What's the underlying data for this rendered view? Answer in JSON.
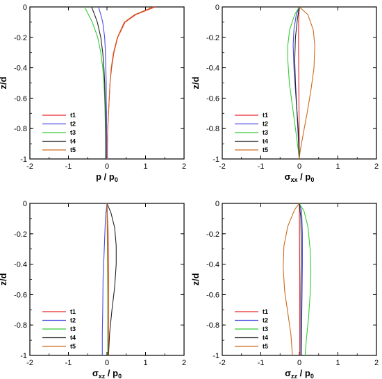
{
  "legend_labels": [
    "t1",
    "t2",
    "t3",
    "t4",
    "t5"
  ],
  "series_colors": [
    "#e8262b",
    "#4a4ae0",
    "#33cc33",
    "#222222",
    "#cc6a1c"
  ],
  "chart_data": [
    {
      "type": "line",
      "xlabel_main": "p / p",
      "xlabel_sub": "0",
      "ylabel": "z/d",
      "xlim": [
        -2,
        2
      ],
      "ylim": [
        -1,
        0
      ],
      "xticks": [
        "-2",
        "-1",
        "0",
        "1",
        "2"
      ],
      "yticks": [
        "0",
        "-0.2",
        "-0.4",
        "-0.6",
        "-0.8",
        "-1"
      ],
      "legend_position": "bottom-left",
      "series": [
        {
          "name": "t1",
          "points": [
            [
              1.25,
              0
            ],
            [
              0.75,
              -0.05
            ],
            [
              0.47,
              -0.1
            ],
            [
              0.28,
              -0.2
            ],
            [
              0.18,
              -0.3
            ],
            [
              0.12,
              -0.4
            ],
            [
              0.08,
              -0.5
            ],
            [
              0.06,
              -0.6
            ],
            [
              0.04,
              -0.7
            ],
            [
              0.02,
              -0.8
            ],
            [
              0.01,
              -0.9
            ],
            [
              0.01,
              -1
            ]
          ]
        },
        {
          "name": "t2",
          "points": [
            [
              -0.22,
              0
            ],
            [
              -0.16,
              -0.05
            ],
            [
              -0.11,
              -0.1
            ],
            [
              -0.06,
              -0.2
            ],
            [
              -0.04,
              -0.3
            ],
            [
              -0.03,
              -0.4
            ],
            [
              -0.02,
              -0.5
            ],
            [
              -0.02,
              -0.6
            ],
            [
              -0.01,
              -0.7
            ],
            [
              -0.01,
              -0.8
            ],
            [
              -0.01,
              -0.9
            ],
            [
              -0.01,
              -1
            ]
          ]
        },
        {
          "name": "t3",
          "points": [
            [
              -0.58,
              0
            ],
            [
              -0.48,
              -0.05
            ],
            [
              -0.38,
              -0.1
            ],
            [
              -0.24,
              -0.2
            ],
            [
              -0.16,
              -0.3
            ],
            [
              -0.11,
              -0.4
            ],
            [
              -0.08,
              -0.5
            ],
            [
              -0.06,
              -0.6
            ],
            [
              -0.05,
              -0.7
            ],
            [
              -0.04,
              -0.8
            ],
            [
              -0.03,
              -0.9
            ],
            [
              -0.03,
              -1
            ]
          ]
        },
        {
          "name": "t4",
          "points": [
            [
              -0.4,
              0
            ],
            [
              -0.32,
              -0.05
            ],
            [
              -0.25,
              -0.1
            ],
            [
              -0.16,
              -0.2
            ],
            [
              -0.11,
              -0.3
            ],
            [
              -0.08,
              -0.4
            ],
            [
              -0.06,
              -0.5
            ],
            [
              -0.05,
              -0.6
            ],
            [
              -0.04,
              -0.7
            ],
            [
              -0.03,
              -0.8
            ],
            [
              -0.03,
              -0.9
            ],
            [
              -0.03,
              -1
            ]
          ]
        },
        {
          "name": "t5",
          "points": [
            [
              1.2,
              0
            ],
            [
              0.72,
              -0.05
            ],
            [
              0.45,
              -0.1
            ],
            [
              0.27,
              -0.2
            ],
            [
              0.17,
              -0.3
            ],
            [
              0.11,
              -0.4
            ],
            [
              0.08,
              -0.5
            ],
            [
              0.06,
              -0.6
            ],
            [
              0.04,
              -0.7
            ],
            [
              0.02,
              -0.8
            ],
            [
              0.01,
              -0.9
            ],
            [
              0.01,
              -1
            ]
          ]
        }
      ]
    },
    {
      "type": "line",
      "xlabel_main": "σ",
      "xlabel_sub": "xx",
      "xlabel_main2": " / p",
      "xlabel_sub2": "0",
      "ylabel": "z/d",
      "xlim": [
        -2,
        2
      ],
      "ylim": [
        -1,
        0
      ],
      "xticks": [
        "-2",
        "-1",
        "0",
        "1",
        "2"
      ],
      "yticks": [
        "0",
        "-0.2",
        "-0.4",
        "-0.6",
        "-0.8",
        "-1"
      ],
      "legend_position": "bottom-left",
      "series": [
        {
          "name": "t1",
          "points": [
            [
              0,
              0
            ],
            [
              -0.02,
              -0.1
            ],
            [
              -0.02,
              -0.3
            ],
            [
              -0.01,
              -0.6
            ],
            [
              0,
              -1
            ]
          ]
        },
        {
          "name": "t2",
          "points": [
            [
              0,
              0
            ],
            [
              -0.08,
              -0.05
            ],
            [
              -0.14,
              -0.15
            ],
            [
              -0.16,
              -0.25
            ],
            [
              -0.14,
              -0.4
            ],
            [
              -0.1,
              -0.55
            ],
            [
              -0.06,
              -0.7
            ],
            [
              -0.03,
              -0.85
            ],
            [
              0,
              -1
            ]
          ]
        },
        {
          "name": "t3",
          "points": [
            [
              0,
              0
            ],
            [
              -0.12,
              -0.05
            ],
            [
              -0.25,
              -0.15
            ],
            [
              -0.3,
              -0.25
            ],
            [
              -0.3,
              -0.35
            ],
            [
              -0.26,
              -0.5
            ],
            [
              -0.18,
              -0.65
            ],
            [
              -0.1,
              -0.8
            ],
            [
              -0.04,
              -0.92
            ],
            [
              0,
              -1
            ]
          ]
        },
        {
          "name": "t4",
          "points": [
            [
              0,
              0
            ],
            [
              -0.05,
              -0.08
            ],
            [
              -0.1,
              -0.2
            ],
            [
              -0.12,
              -0.35
            ],
            [
              -0.1,
              -0.5
            ],
            [
              -0.07,
              -0.65
            ],
            [
              -0.03,
              -0.8
            ],
            [
              0,
              -1
            ]
          ]
        },
        {
          "name": "t5",
          "points": [
            [
              0,
              0
            ],
            [
              0.22,
              -0.05
            ],
            [
              0.36,
              -0.15
            ],
            [
              0.4,
              -0.25
            ],
            [
              0.38,
              -0.4
            ],
            [
              0.3,
              -0.55
            ],
            [
              0.2,
              -0.7
            ],
            [
              0.09,
              -0.85
            ],
            [
              0.02,
              -0.95
            ],
            [
              0,
              -1
            ]
          ]
        }
      ]
    },
    {
      "type": "line",
      "xlabel_main": "σ",
      "xlabel_sub": "xz",
      "xlabel_main2": " / p",
      "xlabel_sub2": "0",
      "ylabel": "z/d",
      "xlim": [
        -2,
        2
      ],
      "ylim": [
        -1,
        0
      ],
      "xticks": [
        "-2",
        "-1",
        "0",
        "1",
        "2"
      ],
      "yticks": [
        "0",
        "-0.2",
        "-0.4",
        "-0.6",
        "-0.8",
        "-1"
      ],
      "legend_position": "bottom-left",
      "series": [
        {
          "name": "t1",
          "points": [
            [
              0,
              0
            ],
            [
              0.03,
              -0.2
            ],
            [
              0.04,
              -0.5
            ],
            [
              0.04,
              -0.8
            ],
            [
              0.04,
              -1
            ]
          ]
        },
        {
          "name": "t2",
          "points": [
            [
              0,
              0
            ],
            [
              -0.04,
              -0.1
            ],
            [
              -0.07,
              -0.3
            ],
            [
              -0.1,
              -0.5
            ],
            [
              -0.11,
              -0.7
            ],
            [
              -0.12,
              -0.85
            ],
            [
              -0.12,
              -1
            ]
          ]
        },
        {
          "name": "t3",
          "points": [
            [
              0,
              0
            ],
            [
              0.01,
              -0.3
            ],
            [
              0.02,
              -0.6
            ],
            [
              0.02,
              -1
            ]
          ]
        },
        {
          "name": "t4",
          "points": [
            [
              0,
              0
            ],
            [
              0.1,
              -0.06
            ],
            [
              0.2,
              -0.16
            ],
            [
              0.24,
              -0.28
            ],
            [
              0.24,
              -0.4
            ],
            [
              0.2,
              -0.55
            ],
            [
              0.13,
              -0.7
            ],
            [
              0.07,
              -0.85
            ],
            [
              0.04,
              -1
            ]
          ]
        },
        {
          "name": "t5",
          "points": [
            [
              0,
              0
            ],
            [
              0.02,
              -0.3
            ],
            [
              0.03,
              -0.6
            ],
            [
              0.03,
              -1
            ]
          ]
        }
      ]
    },
    {
      "type": "line",
      "xlabel_main": "σ",
      "xlabel_sub": "zz",
      "xlabel_main2": " / p",
      "xlabel_sub2": "0",
      "ylabel": "z/d",
      "xlim": [
        -2,
        2
      ],
      "ylim": [
        -1,
        0
      ],
      "xticks": [
        "-2",
        "-1",
        "0",
        "1",
        "2"
      ],
      "yticks": [
        "0",
        "-0.2",
        "-0.4",
        "-0.6",
        "-0.8",
        "-1"
      ],
      "legend_position": "bottom-left",
      "series": [
        {
          "name": "t1",
          "points": [
            [
              0,
              0
            ],
            [
              0.01,
              -0.5
            ],
            [
              0.01,
              -1
            ]
          ]
        },
        {
          "name": "t2",
          "points": [
            [
              0,
              0
            ],
            [
              0.06,
              -0.05
            ],
            [
              0.08,
              -0.2
            ],
            [
              0.08,
              -0.4
            ],
            [
              0.07,
              -0.6
            ],
            [
              0.06,
              -0.8
            ],
            [
              0.05,
              -1
            ]
          ]
        },
        {
          "name": "t3",
          "points": [
            [
              0,
              0
            ],
            [
              0.12,
              -0.05
            ],
            [
              0.22,
              -0.15
            ],
            [
              0.28,
              -0.3
            ],
            [
              0.3,
              -0.45
            ],
            [
              0.28,
              -0.6
            ],
            [
              0.24,
              -0.75
            ],
            [
              0.18,
              -0.9
            ],
            [
              0.15,
              -1
            ]
          ]
        },
        {
          "name": "t4",
          "points": [
            [
              0,
              0
            ],
            [
              0.04,
              -0.1
            ],
            [
              0.05,
              -0.3
            ],
            [
              0.04,
              -0.6
            ],
            [
              0.04,
              -1
            ]
          ]
        },
        {
          "name": "t5",
          "points": [
            [
              0,
              0
            ],
            [
              -0.12,
              -0.04
            ],
            [
              -0.3,
              -0.15
            ],
            [
              -0.4,
              -0.28
            ],
            [
              -0.42,
              -0.42
            ],
            [
              -0.38,
              -0.58
            ],
            [
              -0.3,
              -0.72
            ],
            [
              -0.22,
              -0.86
            ],
            [
              -0.18,
              -1
            ]
          ]
        }
      ]
    }
  ]
}
